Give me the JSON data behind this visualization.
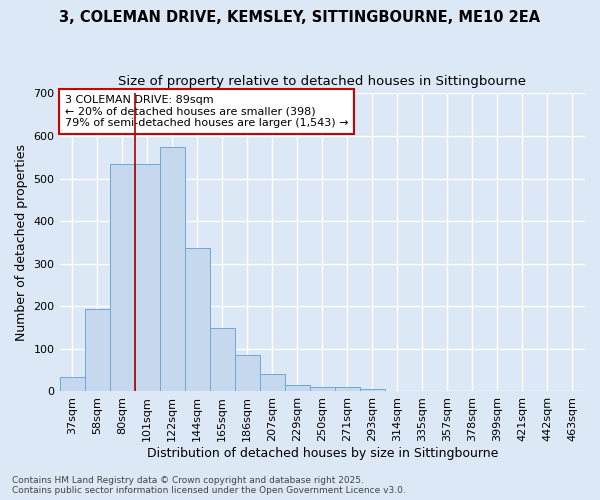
{
  "title_line1": "3, COLEMAN DRIVE, KEMSLEY, SITTINGBOURNE, ME10 2EA",
  "title_line2": "Size of property relative to detached houses in Sittingbourne",
  "xlabel": "Distribution of detached houses by size in Sittingbourne",
  "ylabel": "Number of detached properties",
  "bar_labels": [
    "37sqm",
    "58sqm",
    "80sqm",
    "101sqm",
    "122sqm",
    "144sqm",
    "165sqm",
    "186sqm",
    "207sqm",
    "229sqm",
    "250sqm",
    "271sqm",
    "293sqm",
    "314sqm",
    "335sqm",
    "357sqm",
    "378sqm",
    "399sqm",
    "421sqm",
    "442sqm",
    "463sqm"
  ],
  "bar_values": [
    33,
    193,
    533,
    533,
    575,
    336,
    148,
    86,
    42,
    15,
    10,
    10,
    5,
    0,
    0,
    0,
    0,
    0,
    0,
    0,
    0
  ],
  "bar_color": "#c5d8ee",
  "bar_edgecolor": "#6aaad4",
  "vline_x": 2.5,
  "vline_color": "#aa0000",
  "annotation_text": "3 COLEMAN DRIVE: 89sqm\n← 20% of detached houses are smaller (398)\n79% of semi-detached houses are larger (1,543) →",
  "annotation_box_color": "#ffffff",
  "annotation_edge_color": "#cc0000",
  "ylim": [
    0,
    700
  ],
  "yticks": [
    0,
    100,
    200,
    300,
    400,
    500,
    600,
    700
  ],
  "background_color": "#dce8f5",
  "plot_bg_color": "#dce8f5",
  "grid_color": "#ffffff",
  "footer_line1": "Contains HM Land Registry data © Crown copyright and database right 2025.",
  "footer_line2": "Contains public sector information licensed under the Open Government Licence v3.0.",
  "title_fontsize": 10.5,
  "subtitle_fontsize": 9.5,
  "axis_label_fontsize": 9,
  "tick_fontsize": 8,
  "annotation_fontsize": 8,
  "footer_fontsize": 6.5
}
